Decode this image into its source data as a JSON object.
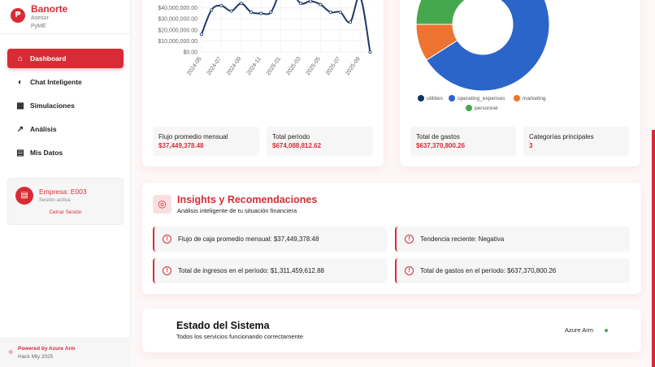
{
  "sidebar": {
    "brand": "Banorte",
    "sub1": "Asesor",
    "sub2": "PyME",
    "items": [
      {
        "label": "Dashboard",
        "icon": "home-icon"
      },
      {
        "label": "Chat Inteligente",
        "icon": "brain-icon"
      },
      {
        "label": "Simulaciones",
        "icon": "calculator-icon"
      },
      {
        "label": "Análisis",
        "icon": "trending-up-icon"
      },
      {
        "label": "Mis Datos",
        "icon": "building-icon"
      }
    ],
    "company": {
      "name": "Empresa: E003",
      "status": "Sesión activa",
      "logout": "Cerrar Sesión"
    },
    "footer": {
      "powered": "Powered by Azure Arm",
      "event": "Hack Mty 2025"
    }
  },
  "cashflow": {
    "stats": [
      {
        "label": "Flujo promedio mensual",
        "value": "$37,449,378.48"
      },
      {
        "label": "Total período",
        "value": "$674,088,812.62"
      }
    ]
  },
  "expenses": {
    "stats": [
      {
        "label": "Total de gastos",
        "value": "$637,370,800.26"
      },
      {
        "label": "Categorías principales",
        "value": "3"
      }
    ]
  },
  "chart_data": [
    {
      "type": "line",
      "x": [
        "2024-05",
        "2024-06",
        "2024-07",
        "2024-08",
        "2024-09",
        "2024-10",
        "2024-11",
        "2024-12",
        "2025-01",
        "2025-02",
        "2025-03",
        "2025-04",
        "2025-05",
        "2025-06",
        "2025-07",
        "2025-08",
        "2025-09",
        "2025-10"
      ],
      "values": [
        16000000,
        38000000,
        42000000,
        37000000,
        44000000,
        36000000,
        35000000,
        36000000,
        55000000,
        55000000,
        44000000,
        46000000,
        43000000,
        36000000,
        36000000,
        27000000,
        50000000,
        0
      ],
      "xticks": [
        "2024-05",
        "2024-07",
        "2024-09",
        "2024-11",
        "2025-01",
        "2025-03",
        "2025-05",
        "2025-07",
        "2025-09"
      ],
      "yticks": [
        "$0.00",
        "$10,000,000.00",
        "$20,000,000.00",
        "$30,000,000.00",
        "$40,000,000.00"
      ],
      "color": "#1e3a66",
      "grid": true
    },
    {
      "type": "pie",
      "donut": true,
      "labels": [
        "utilities",
        "operating_expenses",
        "marketing",
        "personnel"
      ],
      "values": [
        8,
        58,
        9,
        25
      ],
      "colors": [
        "#13305e",
        "#2b65c9",
        "#ec7330",
        "#46a84c"
      ],
      "legend": "bottom"
    }
  ],
  "insights": {
    "title": "Insights y Recomendaciones",
    "subtitle": "Análisis inteligente de tu situación financiera",
    "items": [
      "Flujo de caja promedio mensual: $37,449,378.48",
      "Tendencia reciente: Negativa",
      "Total de ingresos en el período: $1,311,459,612.88",
      "Total de gastos en el período: $637,370,800.26"
    ]
  },
  "system": {
    "title": "Estado del Sistema",
    "subtitle": "Todos los servicios funcionando correctamente",
    "provider": "Azure Arm",
    "status_color": "#46a84c"
  }
}
